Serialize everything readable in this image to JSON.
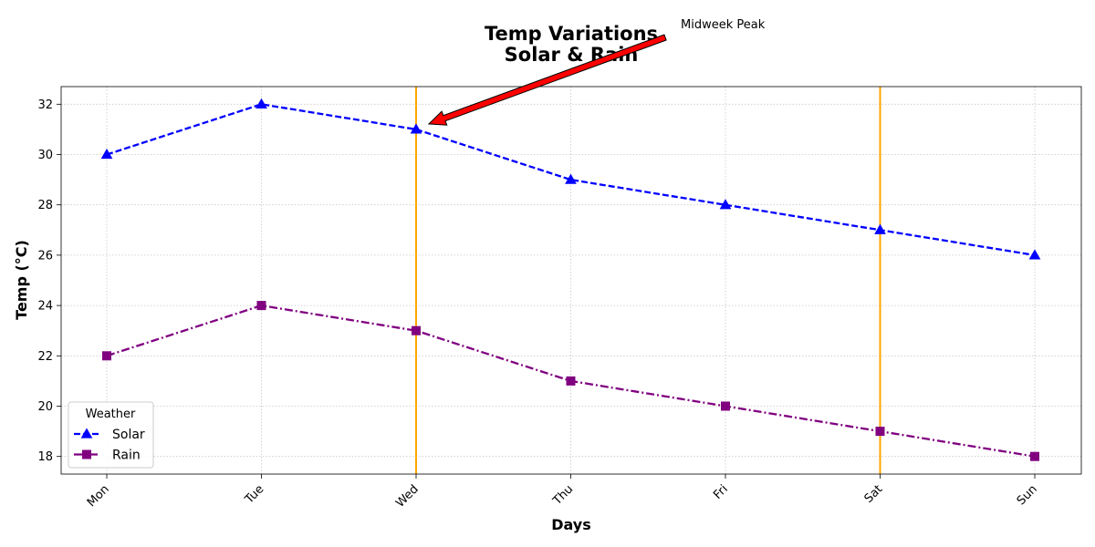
{
  "chart_data": {
    "type": "line",
    "title_lines": [
      "Temp Variations",
      "Solar & Rain"
    ],
    "xlabel": "Days",
    "ylabel": "Temp (°C)",
    "categories": [
      "Mon",
      "Tue",
      "Wed",
      "Thu",
      "Fri",
      "Sat",
      "Sun"
    ],
    "ylim": [
      17.3,
      32.7
    ],
    "yticks": [
      18,
      20,
      22,
      24,
      26,
      28,
      30,
      32
    ],
    "grid": true,
    "legend": {
      "title": "Weather",
      "placement": "lower-left"
    },
    "series": [
      {
        "name": "Solar",
        "values": [
          30,
          32,
          31,
          29,
          28,
          27,
          26
        ],
        "color": "#0000ff",
        "linestyle": "dashed",
        "marker": "triangle"
      },
      {
        "name": "Rain",
        "values": [
          22,
          24,
          23,
          21,
          20,
          19,
          18
        ],
        "color": "#800080",
        "linestyle": "dashdot",
        "marker": "square"
      }
    ],
    "vlines": [
      {
        "x": "Wed",
        "color": "#ffa500"
      },
      {
        "x": "Sat",
        "color": "#ffa500"
      }
    ],
    "annotation": {
      "text": "Midweek Peak",
      "target_x": "Wed",
      "target_y": 31,
      "arrow_color": "#ff0000"
    }
  }
}
